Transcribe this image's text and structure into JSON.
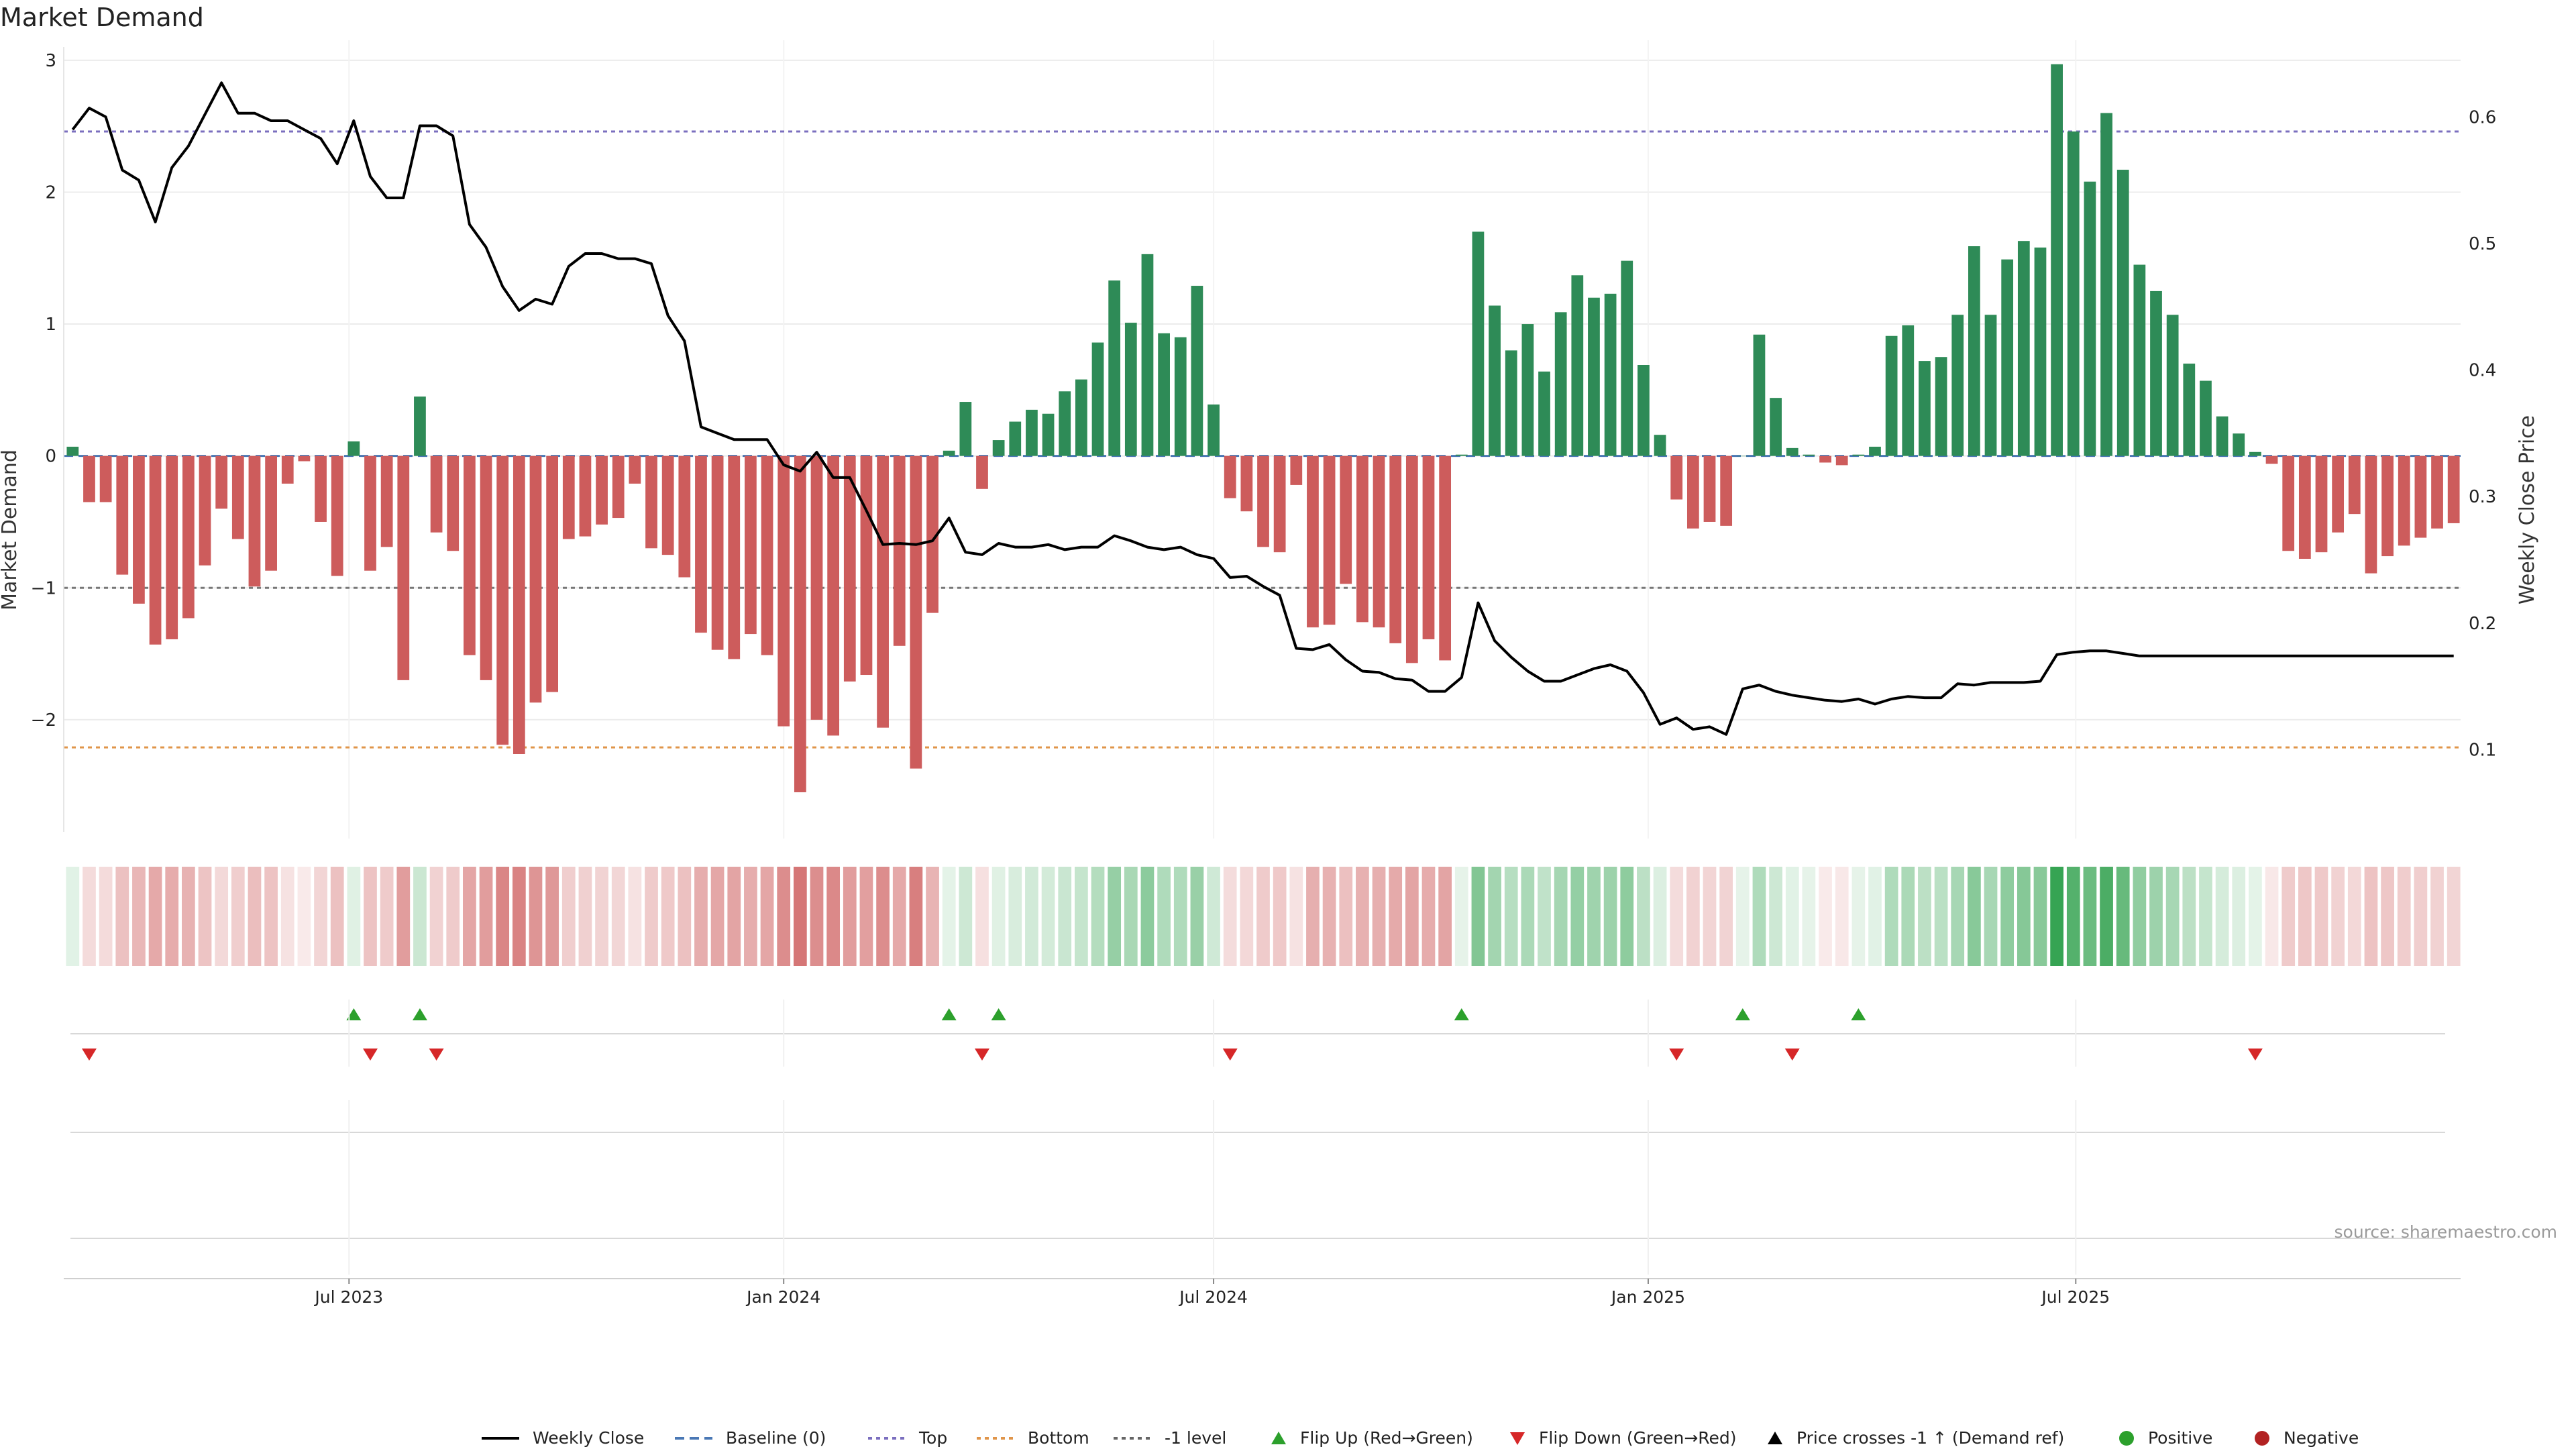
{
  "chart_data": {
    "type": "bar",
    "title": "Market Demand",
    "ylabel_left": "Market Demand",
    "ylabel_right": "Weekly Close Price",
    "x_ticks": [
      "Jul 2023",
      "Jan 2024",
      "Jul 2024",
      "Jan 2025",
      "Jul 2025"
    ],
    "x_tick_dates": [
      "2023-07-01",
      "2024-01-01",
      "2024-07-01",
      "2025-01-01",
      "2025-07-01"
    ],
    "left_ticks": [
      -2,
      -1,
      0,
      1,
      2,
      3
    ],
    "left_tick_labels": [
      "−2",
      "−1",
      "0",
      "1",
      "2",
      "3"
    ],
    "left_ylim": [
      -2.85,
      3.05
    ],
    "right_ticks": [
      0.1,
      0.2,
      0.3,
      0.4,
      0.5,
      0.6
    ],
    "right_tick_labels": [
      "0.1",
      "0.2",
      "0.3",
      "0.4",
      "0.5",
      "0.6"
    ],
    "right_ylim": [
      0.035,
      0.65
    ],
    "grid": true,
    "legend_position": "bottom-center",
    "reference_lines": {
      "top": 2.46,
      "bottom": -2.21,
      "minus_one": -1,
      "baseline": 0
    },
    "source": "source: sharemaestro.com",
    "weeks": {
      "start": "2023-03-06",
      "step_days": 7,
      "demand": [
        0.07,
        -0.35,
        -0.35,
        -0.9,
        -1.12,
        -1.43,
        -1.39,
        -1.23,
        -0.83,
        -0.4,
        -0.63,
        -0.99,
        -0.87,
        -0.21,
        -0.04,
        -0.5,
        -0.91,
        0.11,
        -0.87,
        -0.69,
        -1.7,
        0.45,
        -0.58,
        -0.72,
        -1.51,
        -1.7,
        -2.19,
        -2.26,
        -1.87,
        -1.79,
        -0.63,
        -0.61,
        -0.52,
        -0.47,
        -0.21,
        -0.7,
        -0.75,
        -0.92,
        -1.34,
        -1.47,
        -1.54,
        -1.35,
        -1.51,
        -2.05,
        -2.55,
        -2.0,
        -2.12,
        -1.71,
        -1.66,
        -2.06,
        -1.44,
        -2.37,
        -1.19,
        0.04,
        0.41,
        -0.25,
        0.12,
        0.26,
        0.35,
        0.32,
        0.49,
        0.58,
        0.86,
        1.33,
        1.01,
        1.53,
        0.93,
        0.9,
        1.29,
        0.39,
        -0.32,
        -0.42,
        -0.69,
        -0.73,
        -0.22,
        -1.3,
        -1.28,
        -0.97,
        -1.26,
        -1.3,
        -1.42,
        -1.57,
        -1.39,
        -1.55,
        0.01,
        1.7,
        1.14,
        0.8,
        1.0,
        0.64,
        1.09,
        1.37,
        1.2,
        1.23,
        1.48,
        0.69,
        0.16,
        -0.33,
        -0.55,
        -0.5,
        -0.53,
        0.0,
        0.92,
        0.44,
        0.06,
        0.01,
        -0.05,
        -0.07,
        0.01,
        0.07,
        0.91,
        0.99,
        0.72,
        0.75,
        1.07,
        1.59,
        1.07,
        1.49,
        1.63,
        1.58,
        2.97,
        2.46,
        2.08,
        2.6,
        2.17,
        1.45,
        1.25,
        1.07,
        0.7,
        0.57,
        0.3,
        0.17,
        0.03,
        -0.06,
        -0.72,
        -0.78,
        -0.73,
        -0.58,
        -0.44,
        -0.89,
        -0.76,
        -0.68,
        -0.62,
        -0.55,
        -0.51
      ],
      "close": [
        0.59,
        0.607,
        0.6,
        0.558,
        0.55,
        0.517,
        0.56,
        0.577,
        0.602,
        0.627,
        0.603,
        0.603,
        0.597,
        0.597,
        0.59,
        0.583,
        0.563,
        0.597,
        0.553,
        0.536,
        0.536,
        0.593,
        0.593,
        0.585,
        0.515,
        0.497,
        0.466,
        0.447,
        0.456,
        0.452,
        0.482,
        0.492,
        0.492,
        0.488,
        0.488,
        0.484,
        0.443,
        0.423,
        0.355,
        0.35,
        0.345,
        0.345,
        0.345,
        0.325,
        0.32,
        0.335,
        0.315,
        0.315,
        0.289,
        0.262,
        0.263,
        0.262,
        0.265,
        0.283,
        0.256,
        0.254,
        0.263,
        0.26,
        0.26,
        0.262,
        0.258,
        0.26,
        0.26,
        0.269,
        0.265,
        0.26,
        0.258,
        0.26,
        0.254,
        0.251,
        0.236,
        0.237,
        0.229,
        0.222,
        0.18,
        0.179,
        0.183,
        0.171,
        0.162,
        0.161,
        0.156,
        0.155,
        0.146,
        0.146,
        0.157,
        0.216,
        0.186,
        0.173,
        0.162,
        0.154,
        0.154,
        0.159,
        0.164,
        0.167,
        0.162,
        0.145,
        0.12,
        0.125,
        0.116,
        0.118,
        0.112,
        0.148,
        0.151,
        0.146,
        0.143,
        0.141,
        0.139,
        0.138,
        0.14,
        0.136,
        0.14,
        0.142,
        0.141,
        0.141,
        0.152,
        0.151,
        0.153,
        0.153,
        0.153,
        0.154,
        0.175,
        0.177,
        0.178,
        0.178,
        0.176,
        0.174,
        0.174,
        0.174,
        0.174,
        0.174,
        0.174,
        0.174,
        0.174,
        0.174,
        0.174,
        0.174,
        0.174,
        0.174,
        0.174,
        0.174,
        0.174,
        0.174,
        0.174,
        0.174,
        0.174
      ]
    },
    "flip_up_week_indexes": [
      17,
      21,
      53,
      56,
      84,
      101,
      108
    ],
    "flip_down_week_indexes": [
      1,
      18,
      22,
      55,
      70,
      97,
      104,
      132
    ],
    "legend": [
      {
        "label": "Weekly Close",
        "kind": "line",
        "color": "#000000"
      },
      {
        "label": "Baseline (0)",
        "kind": "dashed",
        "color": "#4a78b5"
      },
      {
        "label": "Top",
        "kind": "dotted",
        "color": "#7b6fbf"
      },
      {
        "label": "Bottom",
        "kind": "dotted",
        "color": "#e0954a"
      },
      {
        "label": "-1 level",
        "kind": "dotted",
        "color": "#666666"
      },
      {
        "label": "Flip Up (Red→Green)",
        "kind": "tri-up",
        "color": "#2ca02c"
      },
      {
        "label": "Flip Down (Green→Red)",
        "kind": "tri-down",
        "color": "#d62728"
      },
      {
        "label": "Price crosses -1 ↑ (Demand ref)",
        "kind": "tri-up",
        "color": "#000000"
      },
      {
        "label": "Positive",
        "kind": "dot",
        "color": "#2ca02c"
      },
      {
        "label": "Negative",
        "kind": "dot",
        "color": "#b22222"
      }
    ],
    "colors": {
      "positive_bar": "#2e8b57",
      "negative_bar": "#cd5c5c",
      "close_line": "#000000",
      "grid": "#ececec"
    }
  }
}
